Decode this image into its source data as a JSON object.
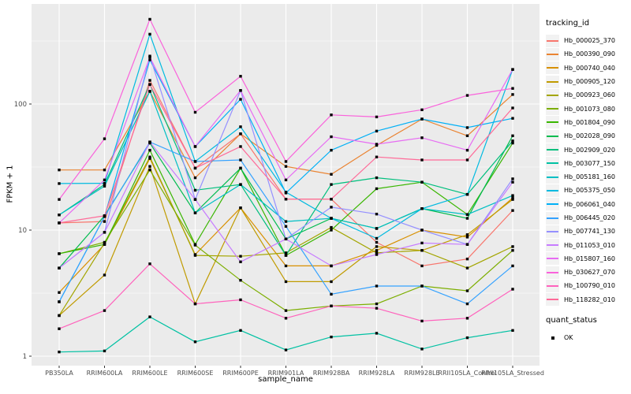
{
  "chart_data": {
    "type": "line",
    "title": "",
    "xlabel": "sample_name",
    "ylabel": "FPKM + 1",
    "y_scale": "log10",
    "y_ticks": [
      1,
      10,
      100
    ],
    "y_tick_labels": [
      "1",
      "10",
      "100"
    ],
    "y_minor_ticks": [
      3.162,
      31.62,
      316.2
    ],
    "ylim": [
      0.88,
      620
    ],
    "grid": "white-major-and-minor-on-gray-panel",
    "legend_position": "right",
    "x_categories": [
      "PB350LA",
      "RRIM600LA",
      "RRIM600LE",
      "RRIM600SE",
      "RRIM600PE",
      "RRIM901LA",
      "RRIM928BA",
      "RRIM928LA",
      "RRIM928LE",
      "RRII105LA_Control",
      "RRII105LA_Stressed"
    ],
    "series": [
      {
        "name": "Hb_000025_370",
        "color": "#F8766D",
        "values": [
          11.4,
          11.7,
          154,
          31,
          58,
          17.6,
          17.6,
          8.0,
          5.2,
          5.9,
          14.3
        ]
      },
      {
        "name": "Hb_000390_090",
        "color": "#EA8331",
        "values": [
          30,
          30,
          126,
          26,
          58,
          32,
          27.7,
          47,
          76,
          56,
          119
        ]
      },
      {
        "name": "Hb_000740_040",
        "color": "#D89000",
        "values": [
          3.2,
          7.7,
          37,
          6.4,
          15,
          5.2,
          5.2,
          6.9,
          10,
          8.8,
          18
        ]
      },
      {
        "name": "Hb_000905_120",
        "color": "#C09B00",
        "values": [
          2.1,
          4.4,
          32,
          2.6,
          15,
          3.9,
          3.9,
          7.4,
          6.9,
          9.2,
          17.5
        ]
      },
      {
        "name": "Hb_000923_060",
        "color": "#A3A500",
        "values": [
          2.1,
          7.9,
          38,
          6.3,
          6.2,
          6.6,
          10.5,
          6.6,
          6.9,
          5.0,
          7.4
        ]
      },
      {
        "name": "Hb_001073_080",
        "color": "#7CAE00",
        "values": [
          6.5,
          8.0,
          30,
          7.6,
          4.0,
          2.3,
          2.5,
          2.6,
          3.6,
          3.3,
          6.9
        ]
      },
      {
        "name": "Hb_001804_090",
        "color": "#39B600",
        "values": [
          6.5,
          7.7,
          43,
          7.7,
          31,
          6.3,
          10,
          21.3,
          24,
          13.3,
          49
        ]
      },
      {
        "name": "Hb_002028_090",
        "color": "#00BB4E",
        "values": [
          5.0,
          13.0,
          49,
          13.7,
          31,
          8.5,
          12.4,
          10.3,
          14.8,
          12.4,
          56
        ]
      },
      {
        "name": "Hb_002909_020",
        "color": "#00BF7D",
        "values": [
          13.2,
          23,
          143,
          20.7,
          23,
          6.3,
          23,
          26,
          24,
          19.2,
          51
        ]
      },
      {
        "name": "Hb_003077_150",
        "color": "#00C1A3",
        "values": [
          1.08,
          1.1,
          2.05,
          1.3,
          1.6,
          1.12,
          1.42,
          1.52,
          1.14,
          1.4,
          1.6
        ]
      },
      {
        "name": "Hb_005181_160",
        "color": "#00BFC4",
        "values": [
          13.2,
          22.3,
          126,
          13.7,
          23,
          11.7,
          12.4,
          10.3,
          14.8,
          13.3,
          18.8
        ]
      },
      {
        "name": "Hb_005375_050",
        "color": "#00BAE0",
        "values": [
          23.4,
          23.5,
          358,
          35,
          66,
          20,
          12.4,
          8.6,
          14.8,
          19.2,
          188
        ]
      },
      {
        "name": "Hb_006061_040",
        "color": "#00B0F6",
        "values": [
          2.7,
          12.8,
          224,
          46,
          109,
          19.7,
          43,
          61,
          76,
          65,
          77
        ]
      },
      {
        "name": "Hb_006445_020",
        "color": "#35A2FF",
        "values": [
          2.7,
          12.8,
          50,
          35,
          36,
          10.7,
          3.1,
          3.6,
          3.6,
          2.6,
          5.2
        ]
      },
      {
        "name": "Hb_007741_130",
        "color": "#9590FF",
        "values": [
          5.0,
          9.6,
          240,
          17.5,
          128,
          8.5,
          15.2,
          13.4,
          10,
          7.7,
          25.5
        ]
      },
      {
        "name": "Hb_011053_010",
        "color": "#C77CFF",
        "values": [
          5.0,
          9.6,
          50,
          17.5,
          5.6,
          8.5,
          5.2,
          6.4,
          7.9,
          7.7,
          24
        ]
      },
      {
        "name": "Hb_015807_160",
        "color": "#E76BF3",
        "values": [
          11.4,
          25,
          235,
          46,
          128,
          25,
          55,
          48,
          54,
          43,
          188
        ]
      },
      {
        "name": "Hb_030627_070",
        "color": "#FA62DB",
        "values": [
          17.5,
          53,
          470,
          86,
          166,
          35,
          82,
          79,
          90,
          117,
          133
        ]
      },
      {
        "name": "Hb_100790_010",
        "color": "#FF62BC",
        "values": [
          1.65,
          2.3,
          5.4,
          2.6,
          2.8,
          2.0,
          2.5,
          2.4,
          1.9,
          2.0,
          3.4
        ]
      },
      {
        "name": "Hb_118282_010",
        "color": "#FF6A98",
        "values": [
          11.4,
          13,
          143,
          31,
          46,
          17.6,
          17.6,
          38,
          36,
          36,
          93
        ]
      }
    ]
  },
  "legend": {
    "tracking_title": "tracking_id",
    "quant_title": "quant_status",
    "quant_items": [
      {
        "label": "OK",
        "marker": "black-square",
        "color": "#000000"
      }
    ]
  },
  "colors": {
    "panel_bg": "#EBEBEB",
    "grid": "#FFFFFF",
    "tick_text": "#4D4D4D",
    "axis_text": "#000000",
    "legend_key_bg": "#F2F2F2",
    "point": "#000000"
  }
}
